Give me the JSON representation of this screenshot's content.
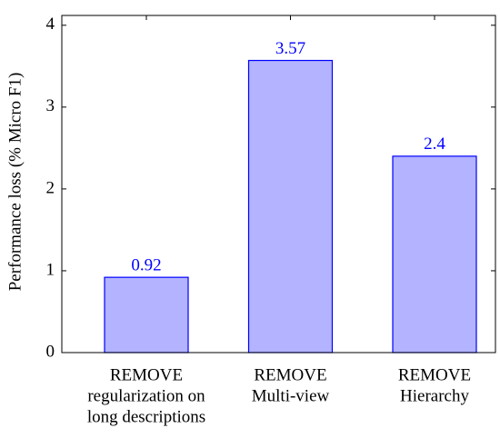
{
  "chart_data": {
    "type": "bar",
    "y_label": "Performance loss (% Micro F1)",
    "categories": [
      [
        "REMOVE",
        "regularization on",
        "long descriptions"
      ],
      [
        "REMOVE",
        "Multi-view"
      ],
      [
        "REMOVE",
        "Hierarchy"
      ]
    ],
    "values": [
      0.92,
      3.57,
      2.4
    ],
    "color": "#b3b3ff",
    "edge_color": "#0000ff",
    "label_color": "#0000ff",
    "ylim": [
      0,
      4.12
    ],
    "yticks": [
      0,
      1,
      2,
      3,
      4
    ],
    "grid": false
  }
}
